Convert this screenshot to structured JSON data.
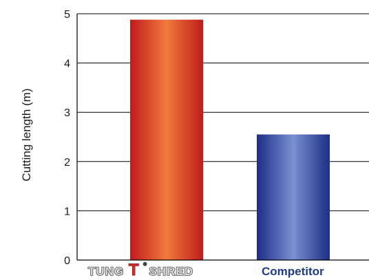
{
  "chart_data": {
    "type": "bar",
    "title": "",
    "ylabel": "Cutting length (m)",
    "xlabel": "",
    "ylim": [
      0,
      5
    ],
    "yticks": [
      0,
      1,
      2,
      3,
      4,
      5
    ],
    "categories": [
      "TUNGTSHRED",
      "Competitor"
    ],
    "values": [
      4.88,
      2.55
    ],
    "grid": "horizontal",
    "legend": "none",
    "category_logo": {
      "pre": "TUNG",
      "accent": "T",
      "mark": "®",
      "post": "SHRED"
    },
    "colors": {
      "TUNGTSHRED": {
        "edge": "#c01b1b",
        "center": "#f07a3c"
      },
      "Competitor": {
        "edge": "#1e2e85",
        "center": "#7b8fd1"
      },
      "competitor_label": "#1e3a8a",
      "logo_accent": "#d42a2a"
    }
  }
}
